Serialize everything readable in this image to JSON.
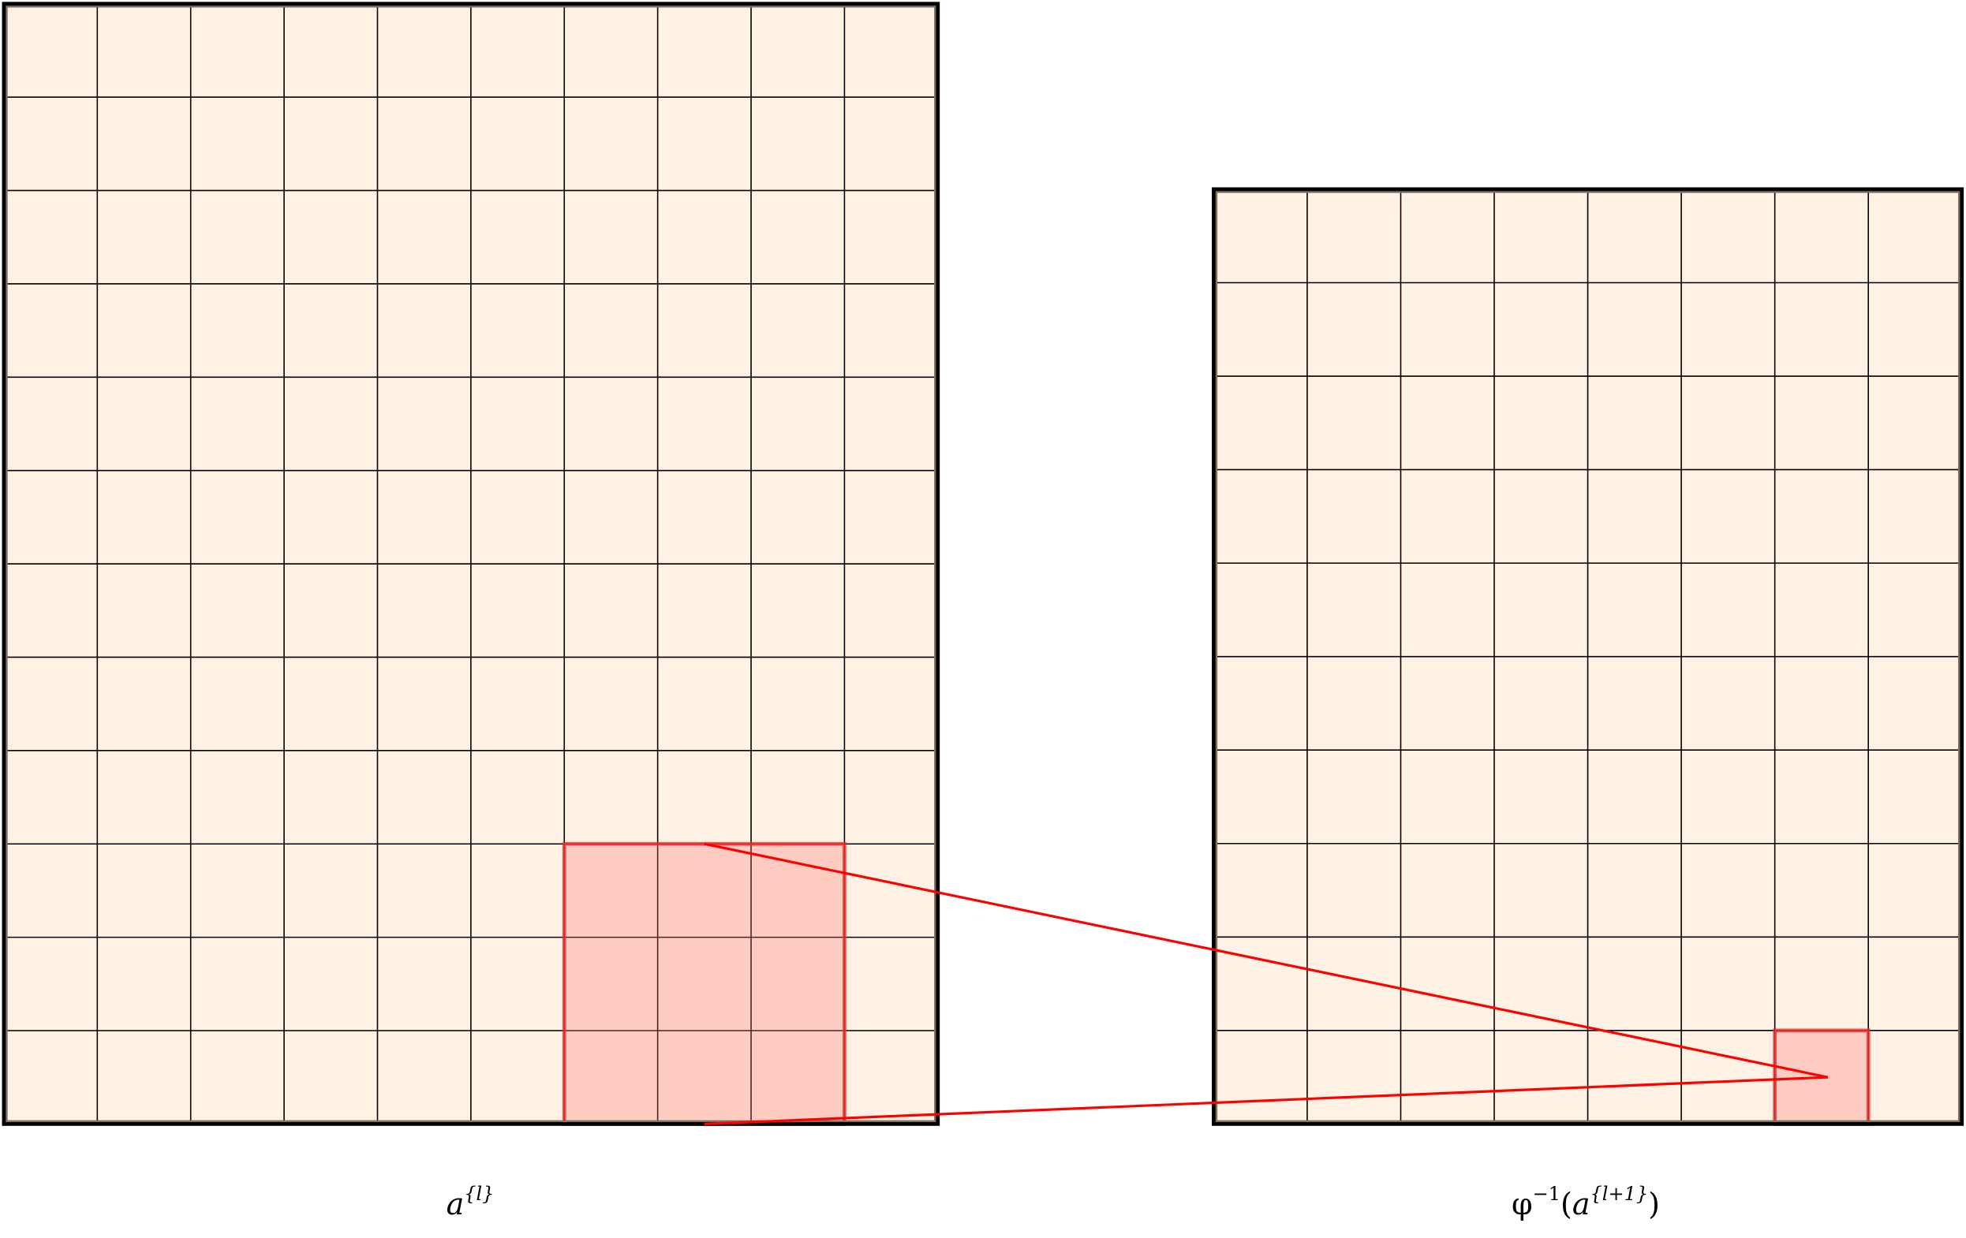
{
  "colors": {
    "cell_fill": "#fff1e3",
    "grid_line": "#000000",
    "frame_inner": "#7f7060",
    "highlight_fill": "#ffd3cf",
    "highlight_stroke": "#ee3333",
    "connector": "#ff0000"
  },
  "left_grid": {
    "cols": 10,
    "rows": 12,
    "highlight": {
      "col_start": 6,
      "row_start": 9,
      "cols": 3,
      "rows": 3
    }
  },
  "right_grid": {
    "cols": 8,
    "rows": 10,
    "highlight": {
      "col_start": 6,
      "row_start": 9,
      "cols": 1,
      "rows": 1
    }
  },
  "labels": {
    "left": {
      "base": "a",
      "sup": "{l}"
    },
    "right": {
      "func": "φ",
      "func_sup": "−1",
      "open": "(",
      "base": "a",
      "sup": "{l+1}",
      "close": ")"
    }
  }
}
